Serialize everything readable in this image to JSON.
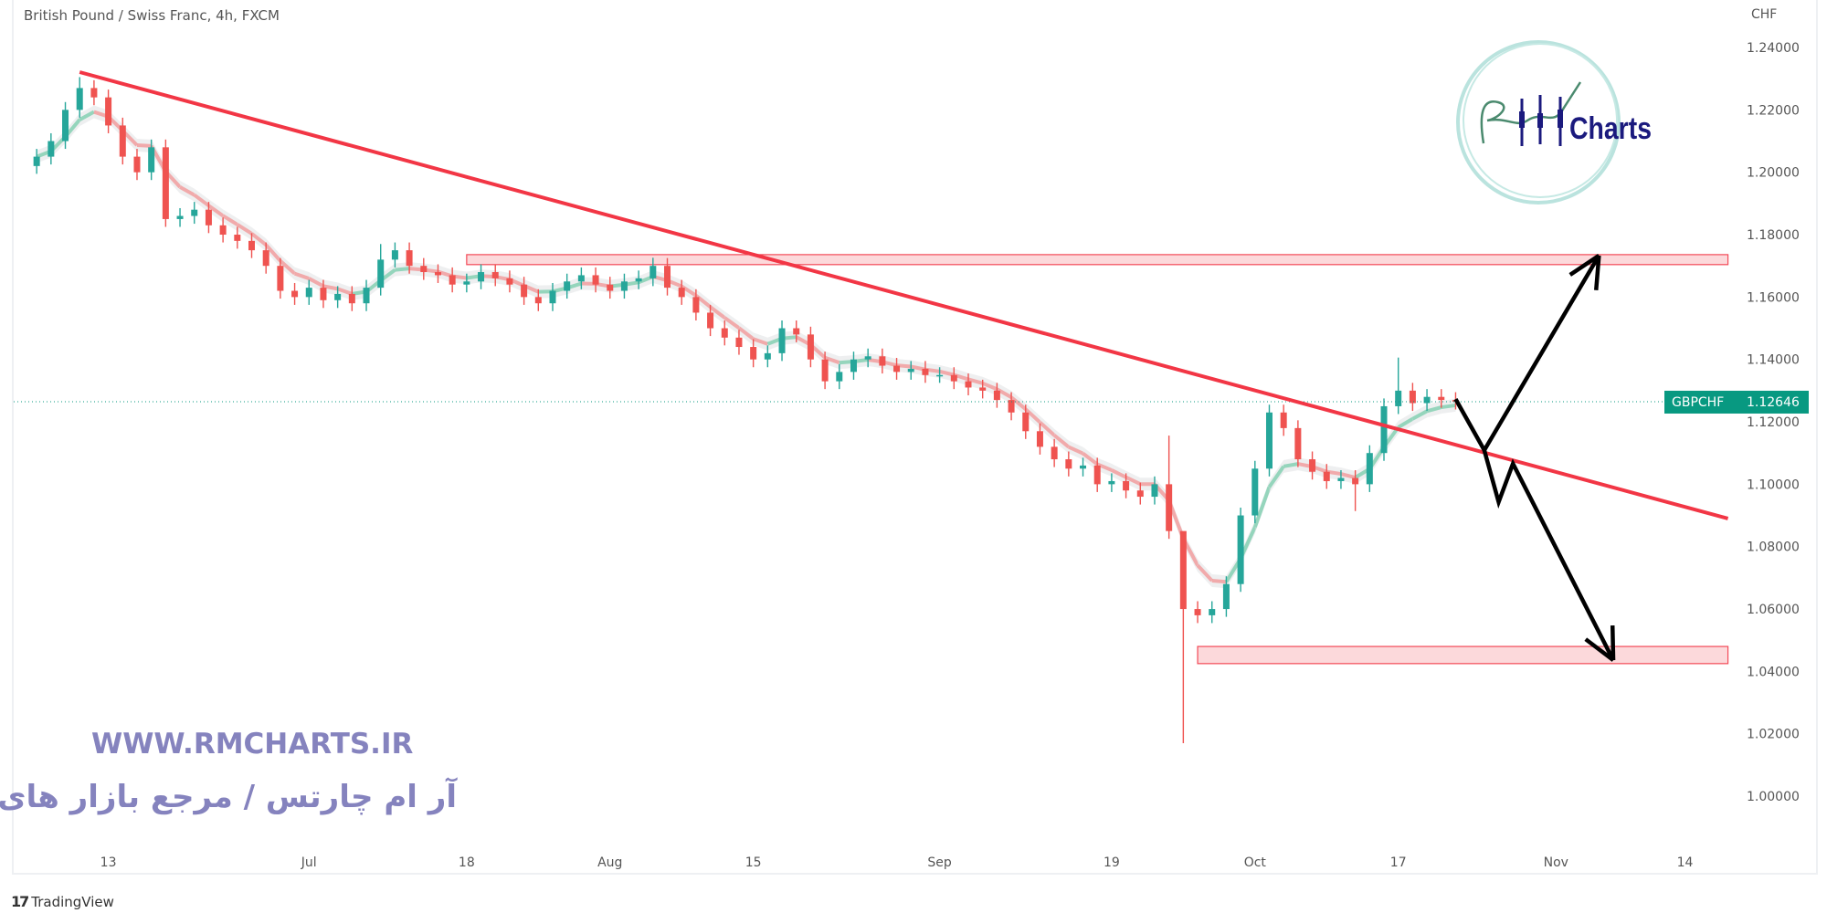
{
  "header": {
    "title": "British Pound / Swiss Franc, 4h, FXCM"
  },
  "footer": {
    "brand": "TradingView",
    "brand_icon": "tradingview-logo-icon"
  },
  "watermark": {
    "url": "WWW.RMCHARTS.IR",
    "persian": "آر ام چارتس / مرجع بازار های مالی",
    "logo_text": "RM Charts",
    "color": "#8583be"
  },
  "chart_data": {
    "type": "candlestick",
    "symbol": "GBPCHF",
    "currency": "CHF",
    "last_price": "1.12646",
    "colors": {
      "up": "#26a69a",
      "down": "#ef5350",
      "trendline": "#f23645",
      "zone_fill": "#fcd5d8",
      "zone_border": "#f23645",
      "arrows": "#000000",
      "last_price": "#089981"
    },
    "ylim": [
      0.99,
      1.245
    ],
    "y_ticks": [
      "1.24000",
      "1.22000",
      "1.20000",
      "1.18000",
      "1.16000",
      "1.14000",
      "1.12000",
      "1.10000",
      "1.08000",
      "1.06000",
      "1.04000",
      "1.02000",
      "1.00000"
    ],
    "x_ticks": [
      {
        "label": "13",
        "date": "Jun 13"
      },
      {
        "label": "Jul",
        "date": "Jul 1"
      },
      {
        "label": "18",
        "date": "Jul 18"
      },
      {
        "label": "Aug",
        "date": "Aug 1"
      },
      {
        "label": "15",
        "date": "Aug 15"
      },
      {
        "label": "Sep",
        "date": "Sep 1"
      },
      {
        "label": "19",
        "date": "Sep 19"
      },
      {
        "label": "Oct",
        "date": "Oct 3"
      },
      {
        "label": "17",
        "date": "Oct 17"
      },
      {
        "label": "Nov",
        "date": "Nov 1"
      },
      {
        "label": "14",
        "date": "Nov 14"
      }
    ],
    "closes": [
      [
        "Jun 6",
        1.205
      ],
      [
        "Jun 7",
        1.21
      ],
      [
        "Jun 8",
        1.22
      ],
      [
        "Jun 9",
        1.227
      ],
      [
        "Jun 10",
        1.224
      ],
      [
        "Jun 13",
        1.215
      ],
      [
        "Jun 14",
        1.205
      ],
      [
        "Jun 15",
        1.2
      ],
      [
        "Jun 16",
        1.208
      ],
      [
        "Jun 17",
        1.185
      ],
      [
        "Jun 20",
        1.186
      ],
      [
        "Jun 21",
        1.188
      ],
      [
        "Jun 22",
        1.183
      ],
      [
        "Jun 23",
        1.18
      ],
      [
        "Jun 24",
        1.178
      ],
      [
        "Jun 27",
        1.175
      ],
      [
        "Jun 28",
        1.17
      ],
      [
        "Jun 29",
        1.162
      ],
      [
        "Jun 30",
        1.16
      ],
      [
        "Jul 1",
        1.163
      ],
      [
        "Jul 4",
        1.159
      ],
      [
        "Jul 5",
        1.161
      ],
      [
        "Jul 6",
        1.158
      ],
      [
        "Jul 7",
        1.163
      ],
      [
        "Jul 8",
        1.172
      ],
      [
        "Jul 11",
        1.175
      ],
      [
        "Jul 12",
        1.17
      ],
      [
        "Jul 13",
        1.168
      ],
      [
        "Jul 14",
        1.167
      ],
      [
        "Jul 15",
        1.164
      ],
      [
        "Jul 18",
        1.165
      ],
      [
        "Jul 19",
        1.168
      ],
      [
        "Jul 20",
        1.166
      ],
      [
        "Jul 21",
        1.164
      ],
      [
        "Jul 22",
        1.16
      ],
      [
        "Jul 25",
        1.158
      ],
      [
        "Jul 26",
        1.162
      ],
      [
        "Jul 27",
        1.165
      ],
      [
        "Jul 28",
        1.167
      ],
      [
        "Jul 29",
        1.164
      ],
      [
        "Aug 1",
        1.162
      ],
      [
        "Aug 2",
        1.165
      ],
      [
        "Aug 3",
        1.166
      ],
      [
        "Aug 4",
        1.17
      ],
      [
        "Aug 5",
        1.163
      ],
      [
        "Aug 8",
        1.16
      ],
      [
        "Aug 9",
        1.155
      ],
      [
        "Aug 10",
        1.15
      ],
      [
        "Aug 11",
        1.147
      ],
      [
        "Aug 12",
        1.144
      ],
      [
        "Aug 15",
        1.14
      ],
      [
        "Aug 16",
        1.142
      ],
      [
        "Aug 17",
        1.15
      ],
      [
        "Aug 18",
        1.148
      ],
      [
        "Aug 19",
        1.14
      ],
      [
        "Aug 22",
        1.133
      ],
      [
        "Aug 23",
        1.136
      ],
      [
        "Aug 24",
        1.14
      ],
      [
        "Aug 25",
        1.141
      ],
      [
        "Aug 26",
        1.138
      ],
      [
        "Aug 29",
        1.136
      ],
      [
        "Aug 30",
        1.137
      ],
      [
        "Aug 31",
        1.135
      ],
      [
        "Sep 1",
        1.135
      ],
      [
        "Sep 2",
        1.133
      ],
      [
        "Sep 5",
        1.131
      ],
      [
        "Sep 6",
        1.13
      ],
      [
        "Sep 7",
        1.127
      ],
      [
        "Sep 8",
        1.123
      ],
      [
        "Sep 9",
        1.117
      ],
      [
        "Sep 12",
        1.112
      ],
      [
        "Sep 13",
        1.108
      ],
      [
        "Sep 14",
        1.105
      ],
      [
        "Sep 15",
        1.106
      ],
      [
        "Sep 16",
        1.1
      ],
      [
        "Sep 19",
        1.101
      ],
      [
        "Sep 20",
        1.098
      ],
      [
        "Sep 21",
        1.096
      ],
      [
        "Sep 22",
        1.1
      ],
      [
        "Sep 23",
        1.085
      ],
      [
        "Sep 26",
        1.06
      ],
      [
        "Sep 27",
        1.058
      ],
      [
        "Sep 28",
        1.06
      ],
      [
        "Sep 29",
        1.068
      ],
      [
        "Sep 30",
        1.09
      ],
      [
        "Oct 3",
        1.105
      ],
      [
        "Oct 4",
        1.123
      ],
      [
        "Oct 5",
        1.118
      ],
      [
        "Oct 6",
        1.108
      ],
      [
        "Oct 7",
        1.104
      ],
      [
        "Oct 10",
        1.101
      ],
      [
        "Oct 11",
        1.102
      ],
      [
        "Oct 12",
        1.1
      ],
      [
        "Oct 13",
        1.11
      ],
      [
        "Oct 14",
        1.125
      ],
      [
        "Oct 17",
        1.13
      ],
      [
        "Oct 18",
        1.126
      ],
      [
        "Oct 19",
        1.128
      ],
      [
        "Oct 20",
        1.127
      ],
      [
        "Oct 21",
        1.12646
      ]
    ],
    "wick_extremes": [
      {
        "date": "Jun 9",
        "high": 1.2305
      },
      {
        "date": "Jul 8",
        "high": 1.177
      },
      {
        "date": "Aug 4",
        "high": 1.1726
      },
      {
        "date": "Sep 23",
        "high": 1.1156
      },
      {
        "date": "Sep 26",
        "low": 1.017
      },
      {
        "date": "Sep 26",
        "high": 1.08
      },
      {
        "date": "Oct 12",
        "low": 1.0914
      },
      {
        "date": "Oct 17",
        "high": 1.1406
      }
    ],
    "drawings": {
      "trendline": {
        "from": [
          "Jun 9",
          1.2321
        ],
        "to": [
          "Nov 17",
          1.089
        ]
      },
      "zones": [
        {
          "from": "Jul 18",
          "to": "Nov 17",
          "top": 1.1736,
          "bottom": 1.1704
        },
        {
          "from": "Sep 27",
          "to": "Nov 17",
          "top": 1.048,
          "bottom": 1.0425
        }
      ],
      "arrow_up": [
        [
          "Oct 21",
          1.1273
        ],
        [
          "Oct 25",
          1.1109
        ],
        [
          "Nov 4",
          1.1733
        ]
      ],
      "arrow_down": [
        [
          "Oct 25",
          1.1109
        ],
        [
          "Oct 26",
          1.0943
        ],
        [
          "Oct 27",
          1.1066
        ],
        [
          "Nov 7",
          1.0436
        ]
      ]
    }
  }
}
